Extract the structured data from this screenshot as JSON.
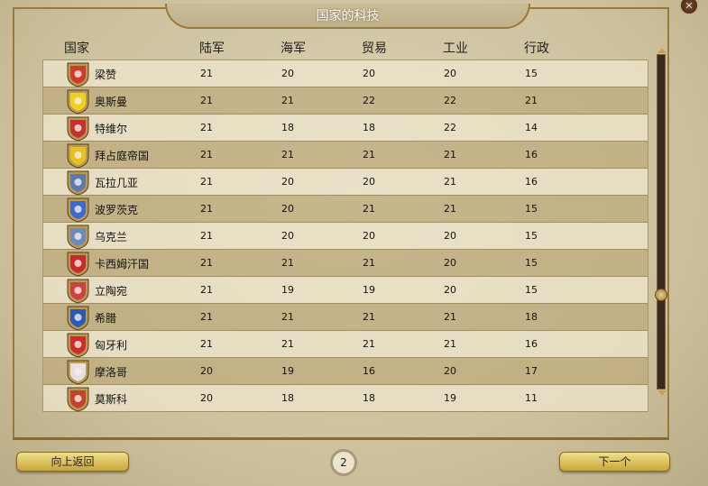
{
  "window": {
    "title": "国家的科技",
    "close_icon": "close-icon"
  },
  "columns": [
    "国家",
    "陆军",
    "海军",
    "贸易",
    "工业",
    "行政"
  ],
  "rows": [
    {
      "name": "梁赞",
      "icon": "shield-white-horse-red",
      "color": "#d23a2a",
      "values": [
        "21",
        "20",
        "20",
        "20",
        "15"
      ]
    },
    {
      "name": "奥斯曼",
      "icon": "shield-crescent",
      "color": "#f0d020",
      "values": [
        "21",
        "21",
        "22",
        "22",
        "21"
      ]
    },
    {
      "name": "特维尔",
      "icon": "shield-rider-red",
      "color": "#c83030",
      "values": [
        "21",
        "18",
        "18",
        "22",
        "14"
      ]
    },
    {
      "name": "拜占庭帝国",
      "icon": "shield-checkered",
      "color": "#e8c020",
      "values": [
        "21",
        "21",
        "21",
        "21",
        "16"
      ]
    },
    {
      "name": "瓦拉几亚",
      "icon": "shield-eagle-blue",
      "color": "#5a7ab0",
      "values": [
        "21",
        "20",
        "20",
        "21",
        "16"
      ]
    },
    {
      "name": "波罗茨克",
      "icon": "shield-cross-blue",
      "color": "#3a6ad0",
      "values": [
        "21",
        "20",
        "21",
        "21",
        "15"
      ]
    },
    {
      "name": "乌克兰",
      "icon": "shield-trident",
      "color": "#6a8ac0",
      "values": [
        "21",
        "20",
        "20",
        "20",
        "15"
      ]
    },
    {
      "name": "卡西姆汗国",
      "icon": "shield-dragon-red",
      "color": "#c82a2a",
      "values": [
        "21",
        "21",
        "21",
        "20",
        "15"
      ]
    },
    {
      "name": "立陶宛",
      "icon": "shield-knight",
      "color": "#d04040",
      "values": [
        "21",
        "19",
        "19",
        "20",
        "15"
      ]
    },
    {
      "name": "希腊",
      "icon": "shield-greek-cross",
      "color": "#2a5ab8",
      "values": [
        "21",
        "21",
        "21",
        "21",
        "18"
      ]
    },
    {
      "name": "匈牙利",
      "icon": "shield-hungary",
      "color": "#d02a2a",
      "values": [
        "21",
        "21",
        "21",
        "21",
        "16"
      ]
    },
    {
      "name": "摩洛哥",
      "icon": "shield-morocco",
      "color": "#e8e0e0",
      "values": [
        "20",
        "19",
        "16",
        "20",
        "17"
      ]
    },
    {
      "name": "莫斯科",
      "icon": "shield-st-george",
      "color": "#c84030",
      "values": [
        "20",
        "18",
        "18",
        "19",
        "11"
      ]
    }
  ],
  "footer": {
    "back_label": "向上返回",
    "page": "2",
    "next_label": "下一个"
  }
}
